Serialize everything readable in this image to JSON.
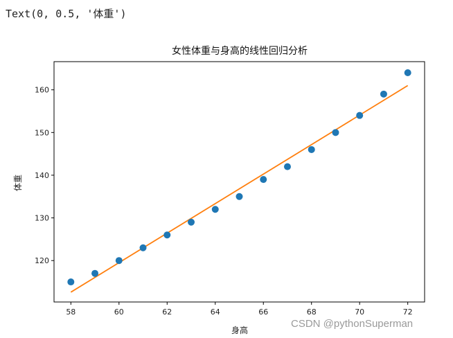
{
  "output_text": "Text(0, 0.5, '体重')",
  "watermark": "CSDN @pythonSuperman",
  "colors": {
    "scatter": "#1f77b4",
    "line": "#ff7f0e",
    "axis": "#000000"
  },
  "chart_data": {
    "type": "scatter",
    "title": "女性体重与身高的线性回归分析",
    "xlabel": "身高",
    "ylabel": "体重",
    "xlim": [
      57.3,
      72.7
    ],
    "ylim": [
      110.3,
      166.6
    ],
    "xticks": [
      58,
      60,
      62,
      64,
      66,
      68,
      70,
      72
    ],
    "yticks": [
      120,
      130,
      140,
      150,
      160
    ],
    "grid": false,
    "series": [
      {
        "kind": "scatter",
        "x": [
          58,
          59,
          60,
          61,
          62,
          63,
          64,
          65,
          66,
          67,
          68,
          69,
          70,
          71,
          72
        ],
        "y": [
          115,
          117,
          120,
          123,
          126,
          129,
          132,
          135,
          139,
          142,
          146,
          150,
          154,
          159,
          164
        ]
      },
      {
        "kind": "line",
        "x": [
          58,
          72
        ],
        "y": [
          112.6,
          161.0
        ]
      }
    ]
  }
}
